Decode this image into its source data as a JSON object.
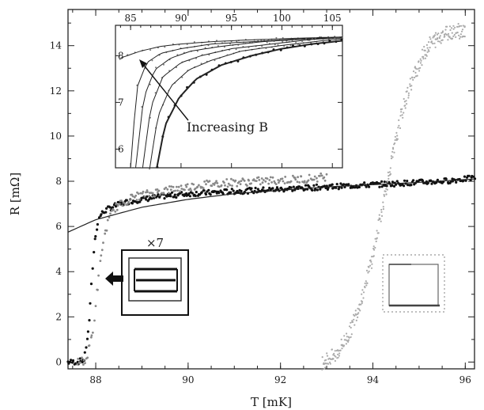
{
  "chart_data": [
    {
      "type": "scatter",
      "xlabel": "T [mK]",
      "ylabel": "R [mΩ]",
      "xlim": [
        87.4,
        96.2
      ],
      "ylim": [
        -0.3,
        15.6
      ],
      "x_ticks": [
        "88",
        "90",
        "92",
        "94",
        "96"
      ],
      "y_ticks": [
        "0",
        "2",
        "4",
        "6",
        "8",
        "10",
        "12",
        "14"
      ],
      "grid": false,
      "series": [
        {
          "style": "black filled points (main sample)",
          "x": [
            87.4,
            87.6,
            87.75,
            87.85,
            87.9,
            87.95,
            88.0,
            88.05,
            88.1,
            88.2,
            88.4,
            88.7,
            89.0,
            89.5,
            90.0,
            90.5,
            91.0,
            91.5,
            92.0,
            92.5,
            93.0,
            93.5,
            94.0,
            94.5,
            95.0,
            95.5,
            96.0,
            96.2
          ],
          "y": [
            0,
            0,
            0.1,
            1.5,
            3.2,
            4.7,
            5.7,
            6.2,
            6.5,
            6.7,
            6.9,
            7.1,
            7.2,
            7.35,
            7.45,
            7.5,
            7.55,
            7.6,
            7.65,
            7.7,
            7.75,
            7.8,
            7.85,
            7.9,
            7.95,
            8.0,
            8.1,
            8.15
          ]
        },
        {
          "style": "grey open points (shifted sample)",
          "x": [
            87.6,
            87.8,
            87.95,
            88.05,
            88.15,
            88.25,
            88.4,
            88.8,
            89.5,
            90.5,
            91.5,
            92.5,
            93.0
          ],
          "y": [
            0,
            0.1,
            1.5,
            3.5,
            5.2,
            6.1,
            6.8,
            7.3,
            7.6,
            7.9,
            8.0,
            8.1,
            8.2
          ]
        },
        {
          "style": "light grey points (bulk transition)",
          "x": [
            92.9,
            93.2,
            93.5,
            93.75,
            94.0,
            94.2,
            94.4,
            94.6,
            94.8,
            95.0,
            95.2,
            95.5,
            95.8,
            96.0
          ],
          "y": [
            0,
            0.3,
            1.3,
            2.8,
            4.7,
            6.8,
            8.8,
            10.8,
            12.2,
            13.2,
            14.0,
            14.5,
            14.7,
            14.6
          ]
        },
        {
          "style": "smooth fit curve",
          "x": [
            87.4,
            88.0,
            89.0,
            90.0,
            91.0,
            92.0,
            93.0,
            94.0,
            95.0,
            96.2
          ],
          "y": [
            5.75,
            6.3,
            6.85,
            7.2,
            7.45,
            7.6,
            7.75,
            7.85,
            7.95,
            8.1
          ]
        }
      ]
    },
    {
      "type": "line",
      "xlabel": "",
      "ylabel": "",
      "xlim": [
        83.5,
        106
      ],
      "ylim": [
        5.6,
        8.65
      ],
      "x_ticks": [
        "85",
        "90",
        "95",
        "100",
        "105"
      ],
      "y_ticks": [
        "6",
        "7",
        "8"
      ],
      "annotation": "Increasing B",
      "series": [
        {
          "x": [
            85.0,
            85.6,
            86.6,
            88.0,
            90.0,
            93.0,
            97.0,
            101.0,
            106.0
          ],
          "y": [
            5.6,
            7.3,
            7.85,
            8.05,
            8.15,
            8.25,
            8.3,
            8.35,
            8.4
          ]
        },
        {
          "x": [
            85.5,
            86.3,
            87.4,
            89.0,
            91.0,
            94.0,
            98.0,
            102.0,
            106.0
          ],
          "y": [
            5.6,
            7.1,
            7.7,
            7.95,
            8.1,
            8.2,
            8.3,
            8.35,
            8.4
          ]
        },
        {
          "x": [
            86.2,
            87.0,
            88.2,
            90.0,
            92.0,
            95.0,
            99.0,
            103.0,
            106.0
          ],
          "y": [
            5.6,
            6.9,
            7.55,
            7.85,
            8.0,
            8.15,
            8.25,
            8.35,
            8.38
          ]
        },
        {
          "x": [
            86.9,
            87.7,
            89.0,
            90.8,
            93.0,
            96.0,
            100.0,
            104.0,
            106.0
          ],
          "y": [
            5.6,
            6.7,
            7.35,
            7.7,
            7.9,
            8.1,
            8.22,
            8.32,
            8.36
          ]
        },
        {
          "x": [
            87.6,
            88.4,
            89.8,
            91.5,
            94.0,
            97.0,
            100.0,
            103.0,
            106.0
          ],
          "y": [
            5.6,
            6.5,
            7.1,
            7.5,
            7.8,
            8.0,
            8.15,
            8.25,
            8.32
          ]
        },
        {
          "x": [
            84.0,
            86.0,
            88.0,
            90.0,
            93.0,
            97.0,
            101.0,
            104.0,
            106.0
          ],
          "y": [
            7.95,
            8.1,
            8.2,
            8.25,
            8.3,
            8.34,
            8.37,
            8.39,
            8.4
          ]
        }
      ]
    }
  ],
  "schematic": {
    "scale_label": "×7"
  }
}
